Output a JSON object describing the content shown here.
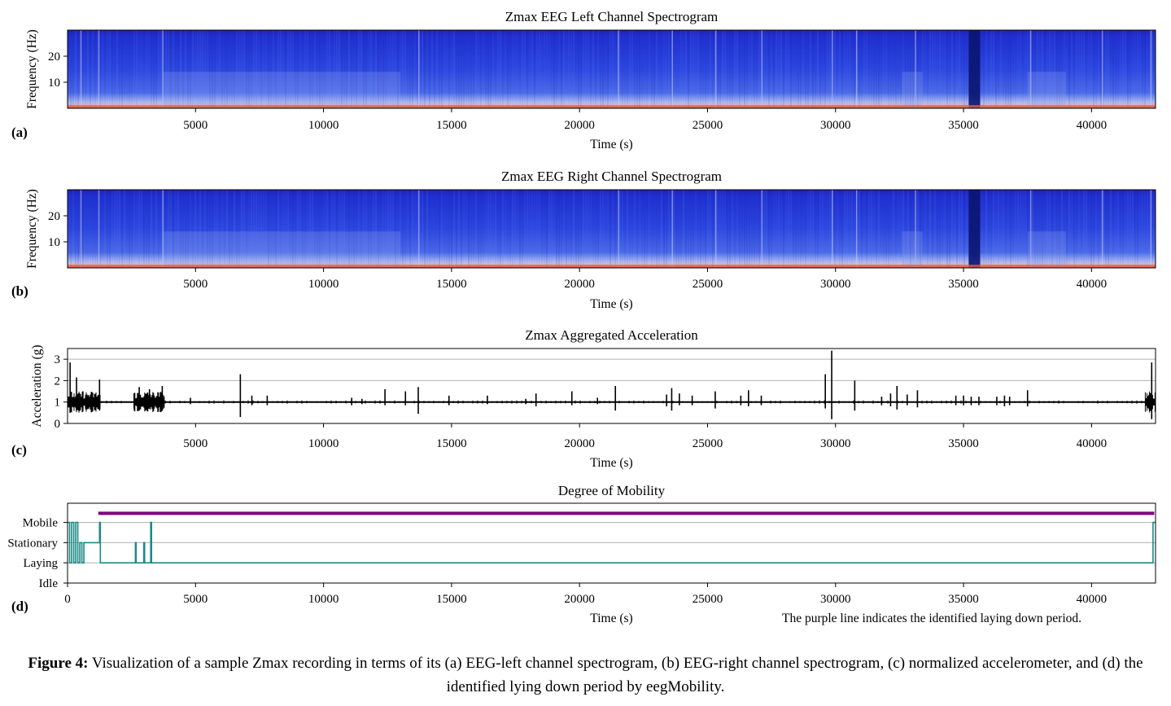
{
  "chart_data": [
    {
      "type": "heatmap",
      "panel": "(a)",
      "title": "Zmax EEG Left Channel Spectrogram",
      "xlabel": "Time (s)",
      "ylabel": "Frequency (Hz)",
      "xlim": [
        0,
        42500
      ],
      "ylim": [
        0,
        30
      ],
      "xticks": [
        5000,
        10000,
        15000,
        20000,
        25000,
        30000,
        35000,
        40000
      ],
      "yticks": [
        10,
        20
      ],
      "colormap": [
        "#1010a0",
        "#2030d8",
        "#3a5ae8",
        "#b8c4f0",
        "#e87060",
        "#c02010"
      ]
    },
    {
      "type": "heatmap",
      "panel": "(b)",
      "title": "Zmax EEG Right Channel Spectrogram",
      "xlabel": "Time (s)",
      "ylabel": "Frequency (Hz)",
      "xlim": [
        0,
        42500
      ],
      "ylim": [
        0,
        30
      ],
      "xticks": [
        5000,
        10000,
        15000,
        20000,
        25000,
        30000,
        35000,
        40000
      ],
      "yticks": [
        10,
        20
      ],
      "colormap": [
        "#1010a0",
        "#2030d8",
        "#3a5ae8",
        "#b8c4f0",
        "#e87060",
        "#c02010"
      ]
    },
    {
      "type": "line",
      "panel": "(c)",
      "title": "Zmax Aggregated Acceleration",
      "xlabel": "Time (s)",
      "ylabel": "Acceleration (g)",
      "xlim": [
        0,
        42500
      ],
      "ylim": [
        0,
        3.5
      ],
      "xticks": [
        5000,
        10000,
        15000,
        20000,
        25000,
        30000,
        35000,
        40000
      ],
      "yticks": [
        0,
        1,
        2,
        3
      ],
      "grid": true,
      "baseline": 1.0,
      "color": "#000000",
      "spikes": [
        {
          "x": 100,
          "min": 0.5,
          "max": 2.85
        },
        {
          "x": 350,
          "min": 0.6,
          "max": 2.15
        },
        {
          "x": 600,
          "min": 0.7,
          "max": 1.5
        },
        {
          "x": 1250,
          "min": 0.6,
          "max": 2.05
        },
        {
          "x": 2600,
          "min": 0.7,
          "max": 1.4
        },
        {
          "x": 2800,
          "min": 0.6,
          "max": 1.7
        },
        {
          "x": 3200,
          "min": 0.7,
          "max": 1.6
        },
        {
          "x": 3700,
          "min": 0.6,
          "max": 1.75
        },
        {
          "x": 4800,
          "min": 0.9,
          "max": 1.2
        },
        {
          "x": 6750,
          "min": 0.3,
          "max": 2.3
        },
        {
          "x": 7200,
          "min": 0.85,
          "max": 1.3
        },
        {
          "x": 7800,
          "min": 0.85,
          "max": 1.3
        },
        {
          "x": 11100,
          "min": 0.85,
          "max": 1.2
        },
        {
          "x": 11500,
          "min": 0.9,
          "max": 1.15
        },
        {
          "x": 12400,
          "min": 0.85,
          "max": 1.6
        },
        {
          "x": 13200,
          "min": 0.85,
          "max": 1.5
        },
        {
          "x": 13700,
          "min": 0.45,
          "max": 1.7
        },
        {
          "x": 14900,
          "min": 0.85,
          "max": 1.3
        },
        {
          "x": 16400,
          "min": 0.9,
          "max": 1.3
        },
        {
          "x": 17900,
          "min": 0.9,
          "max": 1.15
        },
        {
          "x": 18300,
          "min": 0.8,
          "max": 1.4
        },
        {
          "x": 19700,
          "min": 0.85,
          "max": 1.5
        },
        {
          "x": 20700,
          "min": 0.9,
          "max": 1.2
        },
        {
          "x": 21400,
          "min": 0.6,
          "max": 1.75
        },
        {
          "x": 23400,
          "min": 0.8,
          "max": 1.35
        },
        {
          "x": 23600,
          "min": 0.6,
          "max": 1.65
        },
        {
          "x": 23900,
          "min": 0.85,
          "max": 1.4
        },
        {
          "x": 24400,
          "min": 0.85,
          "max": 1.3
        },
        {
          "x": 25300,
          "min": 0.7,
          "max": 1.5
        },
        {
          "x": 26300,
          "min": 0.85,
          "max": 1.3
        },
        {
          "x": 26600,
          "min": 0.8,
          "max": 1.55
        },
        {
          "x": 27100,
          "min": 0.85,
          "max": 1.3
        },
        {
          "x": 29600,
          "min": 0.7,
          "max": 2.3
        },
        {
          "x": 29850,
          "min": 0.2,
          "max": 3.4
        },
        {
          "x": 30750,
          "min": 0.6,
          "max": 2.0
        },
        {
          "x": 31800,
          "min": 0.85,
          "max": 1.25
        },
        {
          "x": 32150,
          "min": 0.8,
          "max": 1.4
        },
        {
          "x": 32400,
          "min": 0.65,
          "max": 1.75
        },
        {
          "x": 32800,
          "min": 0.85,
          "max": 1.35
        },
        {
          "x": 33200,
          "min": 0.75,
          "max": 1.55
        },
        {
          "x": 34700,
          "min": 0.85,
          "max": 1.3
        },
        {
          "x": 35000,
          "min": 0.85,
          "max": 1.3
        },
        {
          "x": 35300,
          "min": 0.85,
          "max": 1.25
        },
        {
          "x": 35600,
          "min": 0.85,
          "max": 1.25
        },
        {
          "x": 36300,
          "min": 0.85,
          "max": 1.25
        },
        {
          "x": 36600,
          "min": 0.8,
          "max": 1.3
        },
        {
          "x": 36800,
          "min": 0.85,
          "max": 1.25
        },
        {
          "x": 37500,
          "min": 0.8,
          "max": 1.55
        },
        {
          "x": 42350,
          "min": 0.2,
          "max": 2.85
        }
      ],
      "noisy_segments": [
        [
          0,
          1300
        ],
        [
          2600,
          3800
        ],
        [
          42100,
          42500
        ]
      ]
    },
    {
      "type": "line",
      "panel": "(d)",
      "title": "Degree of Mobility",
      "xlabel": "Time (s)",
      "xlim": [
        0,
        42500
      ],
      "xticks": [
        0,
        5000,
        10000,
        15000,
        20000,
        25000,
        30000,
        35000,
        40000
      ],
      "yticks": [
        "Idle",
        "Laying",
        "Stationary",
        "Mobile"
      ],
      "grid": true,
      "annotation": "The purple line indicates the identified laying down period.",
      "series": [
        {
          "color": "#1a8a85",
          "x": [
            0,
            80,
            80,
            160,
            160,
            240,
            240,
            320,
            320,
            400,
            400,
            480,
            480,
            560,
            560,
            640,
            640,
            1250,
            1250,
            1280,
            1280,
            2650,
            2650,
            2680,
            2680,
            2980,
            2980,
            3010,
            3010,
            3250,
            3250,
            3280,
            3280,
            42400,
            42400,
            42500
          ],
          "y": [
            3,
            3,
            1,
            1,
            3,
            3,
            1,
            1,
            3,
            3,
            1,
            1,
            2,
            2,
            1,
            1,
            2,
            2,
            3,
            3,
            1,
            1,
            2,
            2,
            1,
            1,
            2,
            2,
            1,
            1,
            3,
            3,
            1,
            1,
            3,
            3
          ]
        },
        {
          "color": "#800080",
          "x": [
            1200,
            42450
          ],
          "y": [
            3.45,
            3.45
          ]
        }
      ]
    }
  ],
  "panel_labels": [
    "(a)",
    "(b)",
    "(c)",
    "(d)"
  ],
  "caption": {
    "label": "Figure 4:",
    "text": "Visualization of a sample Zmax recording in terms of its (a) EEG-left channel spectrogram, (b) EEG-right channel spectrogram, (c) normalized accelerometer, and (d) the identified lying down period by eegMobility."
  }
}
